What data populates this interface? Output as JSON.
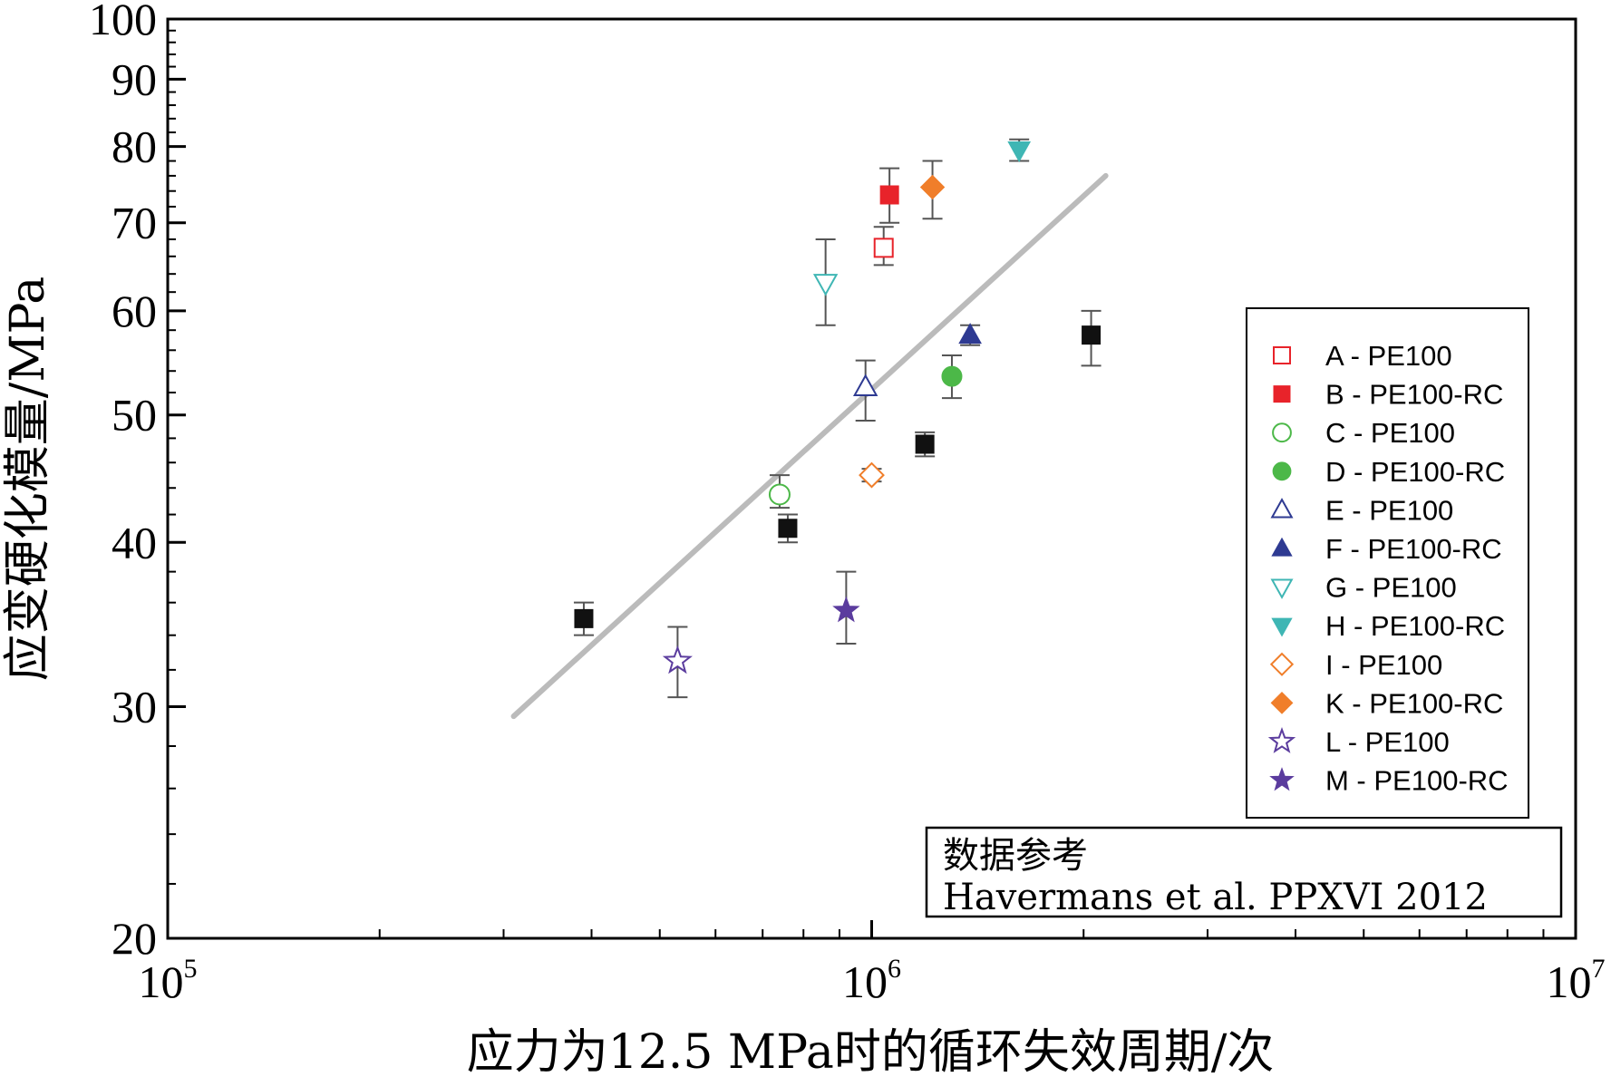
{
  "chart_data": {
    "type": "scatter",
    "xlabel": "应力为12.5 MPa时的循环失效周期/次",
    "ylabel": "应变硬化模量/MPa",
    "xscale": "log",
    "yscale": "log",
    "xlim": [
      100000,
      10000000
    ],
    "ylim": [
      20,
      100
    ],
    "x_ticks": [
      {
        "value": 100000,
        "base": "10",
        "exp": "5"
      },
      {
        "value": 1000000,
        "base": "10",
        "exp": "6"
      },
      {
        "value": 10000000,
        "base": "10",
        "exp": "7"
      }
    ],
    "y_ticks": [
      20,
      30,
      40,
      50,
      60,
      70,
      80,
      90,
      100
    ],
    "grid": false,
    "legend_position": "right",
    "series": [
      {
        "name": "A - PE100",
        "marker": "square",
        "filled": false,
        "color": "#e8232a",
        "points": [
          {
            "x": 1040000,
            "y": 67,
            "err": [
              65,
              69.5
            ]
          }
        ]
      },
      {
        "name": "B - PE100-RC",
        "marker": "square",
        "filled": true,
        "color": "#e8232a",
        "points": [
          {
            "x": 1060000,
            "y": 73.5,
            "err": [
              70,
              77
            ]
          }
        ]
      },
      {
        "name": "C - PE100",
        "marker": "circle",
        "filled": false,
        "color": "#4cb848",
        "points": [
          {
            "x": 740000,
            "y": 43.5,
            "err": [
              42.5,
              45
            ]
          }
        ]
      },
      {
        "name": "D - PE100-RC",
        "marker": "circle",
        "filled": true,
        "color": "#4cb848",
        "points": [
          {
            "x": 1300000,
            "y": 53.5,
            "err": [
              51.5,
              55.5
            ]
          }
        ]
      },
      {
        "name": "E - PE100",
        "marker": "triangle-up",
        "filled": false,
        "color": "#2e3a92",
        "points": [
          {
            "x": 980000,
            "y": 52.5,
            "err": [
              49.5,
              55
            ]
          }
        ]
      },
      {
        "name": "F - PE100-RC",
        "marker": "triangle-up",
        "filled": true,
        "color": "#2e3a92",
        "points": [
          {
            "x": 1380000,
            "y": 57.5,
            "err": [
              56.5,
              58.5
            ]
          }
        ]
      },
      {
        "name": "G - PE100",
        "marker": "triangle-down",
        "filled": false,
        "color": "#3fb6b4",
        "points": [
          {
            "x": 860000,
            "y": 63,
            "err": [
              58.5,
              68
            ]
          }
        ]
      },
      {
        "name": "H - PE100-RC",
        "marker": "triangle-down",
        "filled": true,
        "color": "#3fb6b4",
        "points": [
          {
            "x": 1620000,
            "y": 79.5,
            "err": [
              78,
              81
            ]
          }
        ]
      },
      {
        "name": "I - PE100",
        "marker": "diamond",
        "filled": false,
        "color": "#f07e2a",
        "points": [
          {
            "x": 1000000,
            "y": 45,
            "err": [
              44.5,
              45.5
            ]
          }
        ]
      },
      {
        "name": "K - PE100-RC",
        "marker": "diamond",
        "filled": true,
        "color": "#f07e2a",
        "points": [
          {
            "x": 1220000,
            "y": 74.5,
            "err": [
              70.5,
              78
            ]
          }
        ]
      },
      {
        "name": "L - PE100",
        "marker": "star",
        "filled": false,
        "color": "#5b3c9e",
        "points": [
          {
            "x": 530000,
            "y": 32.5,
            "err": [
              30.5,
              34.5
            ]
          }
        ]
      },
      {
        "name": "M - PE100-RC",
        "marker": "star",
        "filled": true,
        "color": "#5b3c9e",
        "points": [
          {
            "x": 920000,
            "y": 35.5,
            "err": [
              33.5,
              38
            ]
          }
        ]
      },
      {
        "marker": "square",
        "filled": true,
        "color": "#111111",
        "points": [
          {
            "x": 390000,
            "y": 35,
            "err": [
              34,
              36
            ]
          },
          {
            "x": 760000,
            "y": 41,
            "err": [
              40,
              42
            ]
          },
          {
            "x": 1190000,
            "y": 47.5,
            "err": [
              46.5,
              48.5
            ]
          },
          {
            "x": 2050000,
            "y": 57.5,
            "err": [
              54.5,
              60
            ]
          }
        ]
      }
    ],
    "trend_line": {
      "color": "#bbbbbb",
      "from": {
        "x": 310000,
        "y": 29.5
      },
      "to": {
        "x": 2150000,
        "y": 76
      }
    },
    "annotation": {
      "line1": "数据参考",
      "line2": "Havermans et al. PPXVI 2012"
    }
  }
}
